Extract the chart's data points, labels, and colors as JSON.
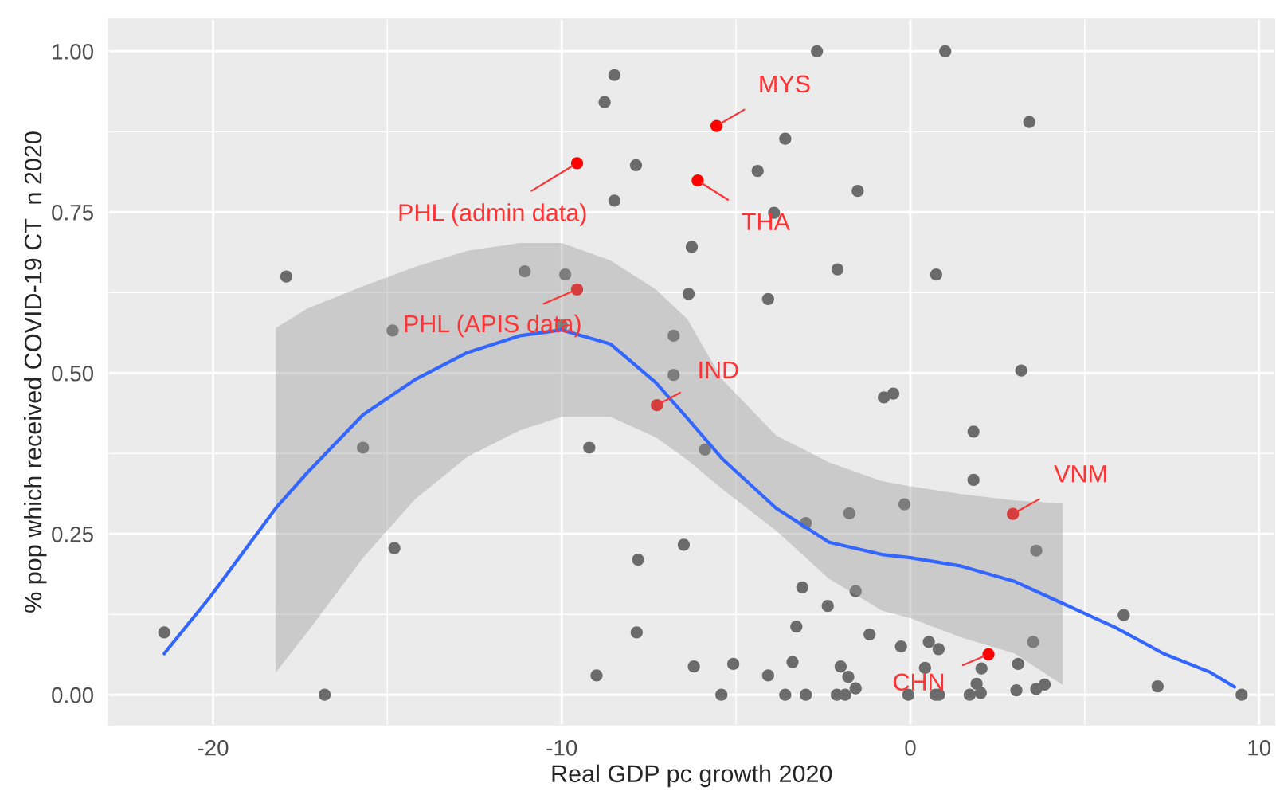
{
  "chart_data": {
    "type": "scatter",
    "xlabel": "Real GDP pc growth 2020",
    "ylabel": "% pop which received COVID-19 CT  n 2020",
    "xlim": [
      -23,
      10.45
    ],
    "ylim": [
      -0.047,
      1.05
    ],
    "xticks": [
      -20,
      -10,
      0,
      10
    ],
    "yticks": [
      {
        "value": 0,
        "label": "0.00"
      },
      {
        "value": 0.25,
        "label": "0.25"
      },
      {
        "value": 0.5,
        "label": "0.50"
      },
      {
        "value": 0.75,
        "label": "0.75"
      },
      {
        "value": 1,
        "label": "1.00"
      }
    ],
    "grid": true,
    "series": [
      {
        "marker": "circle",
        "color": "#6b6b6b",
        "x": [
          -21.4,
          -17.9,
          -16.8,
          -14.85,
          -15.7,
          -14.8,
          -11.06,
          -9.9,
          -10.0,
          -8.77,
          -8.49,
          -7.87,
          -8.49,
          -6.79,
          -6.79,
          -9.21,
          -7.81,
          -7.85,
          -9.0,
          -6.5,
          -2.68,
          1.0,
          3.41,
          -3.59,
          -4.38,
          -1.51,
          -3.91,
          -6.27,
          -2.09,
          0.74,
          -6.36,
          -4.08,
          3.18,
          -0.49,
          -0.76,
          -5.89,
          1.81,
          1.81,
          -0.17,
          -1.75,
          -3.0,
          3.61,
          -3.1,
          -1.57,
          -2.37,
          -3.27,
          -1.17,
          6.12,
          3.52,
          -0.27,
          0.53,
          0.81,
          -6.21,
          -5.08,
          -3.38,
          -2.0,
          0.42,
          2.04,
          3.09,
          -4.08,
          -1.78,
          1.9,
          -1.57,
          7.09,
          3.85,
          3.61,
          3.04,
          -5.42,
          -3.59,
          -3.0,
          -2.11,
          -1.87,
          -0.06,
          0.72,
          0.82,
          1.7,
          2.02,
          9.5
        ],
        "values": [
          0.097,
          0.65,
          0.0,
          0.566,
          0.384,
          0.228,
          0.658,
          0.653,
          0.574,
          0.921,
          0.963,
          0.823,
          0.768,
          0.558,
          0.497,
          0.384,
          0.21,
          0.097,
          0.03,
          0.233,
          1.0,
          1.0,
          0.89,
          0.864,
          0.814,
          0.783,
          0.749,
          0.696,
          0.661,
          0.653,
          0.623,
          0.615,
          0.504,
          0.468,
          0.462,
          0.381,
          0.409,
          0.334,
          0.296,
          0.282,
          0.267,
          0.224,
          0.167,
          0.161,
          0.138,
          0.106,
          0.094,
          0.124,
          0.082,
          0.075,
          0.082,
          0.071,
          0.044,
          0.048,
          0.051,
          0.044,
          0.042,
          0.041,
          0.048,
          0.03,
          0.028,
          0.017,
          0.01,
          0.013,
          0.016,
          0.009,
          0.007,
          0.0,
          0.0,
          0.0,
          0.0,
          0.0,
          0.0,
          0.0,
          0.0,
          0.0,
          0.003,
          0.0
        ]
      },
      {
        "marker": "circle",
        "color": "#ff0000",
        "x": [
          -9.56,
          -9.56,
          -7.27,
          -5.56,
          -6.1,
          2.94,
          2.24
        ],
        "values": [
          0.826,
          0.63,
          0.45,
          0.884,
          0.799,
          0.281,
          0.063
        ]
      },
      {
        "type": "line",
        "color": "#3366ff",
        "x": [
          -21.4,
          -20.1,
          -18.2,
          -17.3,
          -15.7,
          -14.2,
          -12.7,
          -11.2,
          -10.0,
          -8.6,
          -7.3,
          -6.4,
          -5.4,
          -3.85,
          -2.33,
          -0.82,
          0,
          1.46,
          3.0,
          4.37,
          5.9,
          7.26,
          8.6,
          9.3
        ],
        "values": [
          0.064,
          0.151,
          0.29,
          0.345,
          0.435,
          0.49,
          0.532,
          0.558,
          0.567,
          0.545,
          0.485,
          0.43,
          0.367,
          0.29,
          0.237,
          0.218,
          0.213,
          0.2,
          0.176,
          0.142,
          0.104,
          0.064,
          0.035,
          0.012
        ],
        "lower": [
          null,
          null,
          0.035,
          0.097,
          0.213,
          0.304,
          0.37,
          0.411,
          0.432,
          0.432,
          0.4,
          0.365,
          0.32,
          0.255,
          0.18,
          0.131,
          0.119,
          0.089,
          0.064,
          0.015,
          null,
          null,
          null,
          null
        ],
        "upper": [
          null,
          null,
          0.57,
          0.6,
          0.635,
          0.665,
          0.69,
          0.702,
          0.702,
          0.675,
          0.63,
          0.584,
          0.49,
          0.403,
          0.361,
          0.332,
          0.324,
          0.312,
          0.302,
          0.297,
          null,
          null,
          null,
          null
        ]
      }
    ],
    "annotations": [
      {
        "text": "PHL (admin data)",
        "x": -9.56,
        "y": 0.826
      },
      {
        "text": "PHL (APIS data)",
        "x": -9.56,
        "y": 0.63
      },
      {
        "text": "IND",
        "x": -7.27,
        "y": 0.45
      },
      {
        "text": "MYS",
        "x": -5.56,
        "y": 0.884
      },
      {
        "text": "THA",
        "x": -6.1,
        "y": 0.799
      },
      {
        "text": "VNM",
        "x": 2.94,
        "y": 0.281
      },
      {
        "text": "CHN",
        "x": 2.24,
        "y": 0.063
      }
    ]
  }
}
